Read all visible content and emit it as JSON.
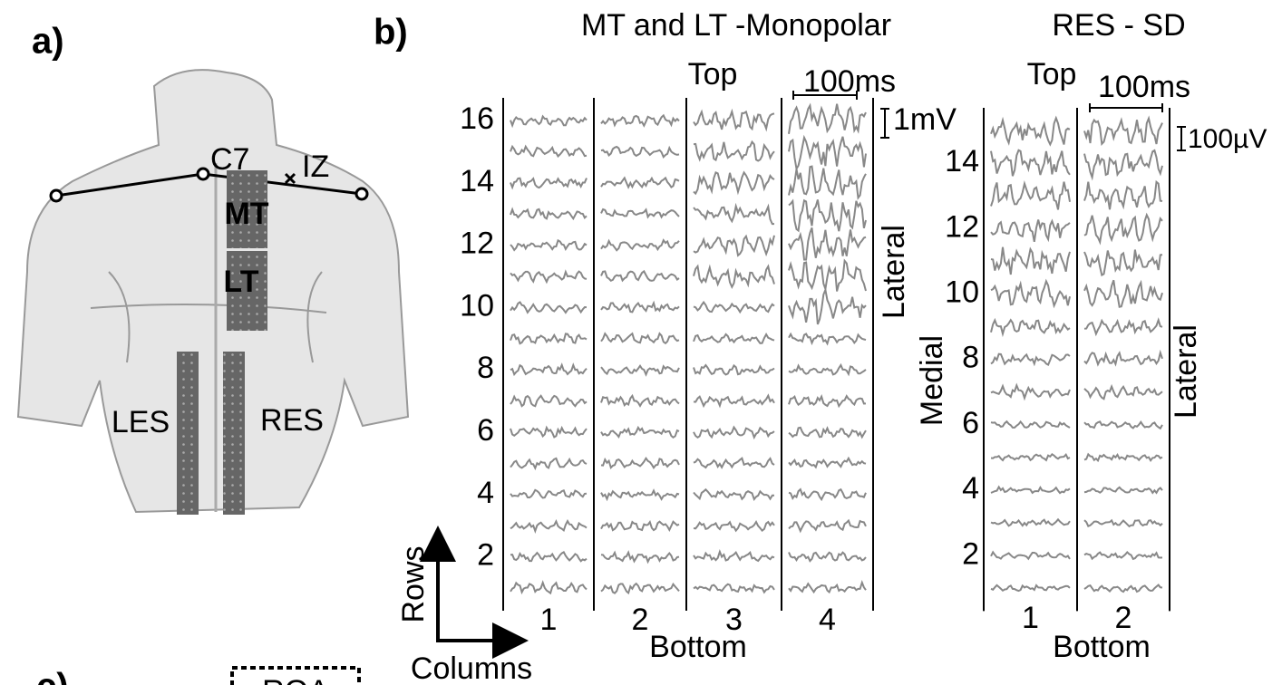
{
  "panel_a": {
    "label": "a)",
    "landmarks": [
      "C7",
      "IZ"
    ],
    "grids": [
      "MT",
      "LT",
      "LES",
      "RES"
    ]
  },
  "panel_b": {
    "label": "b)",
    "left": {
      "title": "MT and LT -Monopolar",
      "top": "Top",
      "bottom": "Bottom",
      "time_scale": "100ms",
      "amp_scale": "1mV",
      "side": "Lateral",
      "rows": [
        "16",
        "14",
        "12",
        "10",
        "8",
        "6",
        "4",
        "2"
      ],
      "columns": [
        "1",
        "2",
        "3",
        "4"
      ]
    },
    "right": {
      "title": "RES - SD",
      "top": "Top",
      "bottom": "Bottom",
      "time_scale": "100ms",
      "amp_scale": "100µV",
      "side_left": "Medial",
      "side_right": "Lateral",
      "rows": [
        "14",
        "12",
        "10",
        "8",
        "6",
        "4",
        "2"
      ],
      "columns": [
        "1",
        "2"
      ]
    },
    "axes": {
      "rows": "Rows",
      "columns": "Columns"
    }
  },
  "panel_c": {
    "label": "c)",
    "box": "ROA"
  }
}
